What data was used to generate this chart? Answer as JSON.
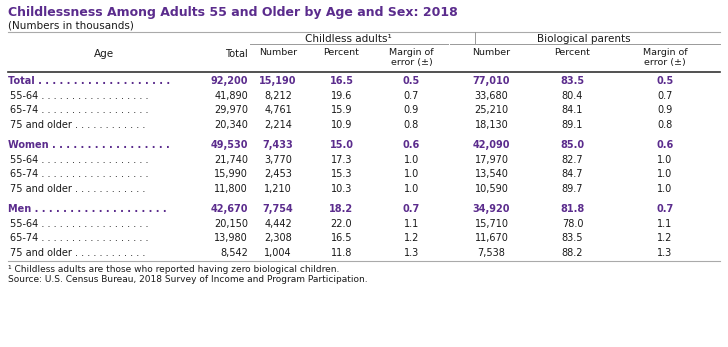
{
  "title": "Childlessness Among Adults 55 and Older by Age and Sex: 2018",
  "subtitle": "(Numbers in thousands)",
  "header1": "Childless adults¹",
  "header2": "Biological parents",
  "footnote1": "¹ Childless adults are those who reported having zero biological children.",
  "footnote2": "Source: U.S. Census Bureau, 2018 Survey of Income and Program Participation.",
  "purple_color": "#5B2C8D",
  "black_color": "#1a1a1a",
  "col_labels": [
    "Total",
    "Number",
    "Percent",
    "Margin of\nerror (±)",
    "Number",
    "Percent",
    "Margin of\nerror (±)"
  ],
  "age_label": "Age",
  "rows": [
    {
      "label": "Total . . . . . . . . . . . . . . . . . . .",
      "bold": true,
      "v": [
        "92,200",
        "15,190",
        "16.5",
        "0.5",
        "77,010",
        "83.5",
        "0.5"
      ]
    },
    {
      "label": "55-64 . . . . . . . . . . . . . . . . . .",
      "bold": false,
      "v": [
        "41,890",
        "8,212",
        "19.6",
        "0.7",
        "33,680",
        "80.4",
        "0.7"
      ]
    },
    {
      "label": "65-74 . . . . . . . . . . . . . . . . . .",
      "bold": false,
      "v": [
        "29,970",
        "4,761",
        "15.9",
        "0.9",
        "25,210",
        "84.1",
        "0.9"
      ]
    },
    {
      "label": "75 and older . . . . . . . . . . . .",
      "bold": false,
      "v": [
        "20,340",
        "2,214",
        "10.9",
        "0.8",
        "18,130",
        "89.1",
        "0.8"
      ]
    },
    {
      "spacer": true
    },
    {
      "label": "Women . . . . . . . . . . . . . . . . .",
      "bold": true,
      "v": [
        "49,530",
        "7,433",
        "15.0",
        "0.6",
        "42,090",
        "85.0",
        "0.6"
      ]
    },
    {
      "label": "55-64 . . . . . . . . . . . . . . . . . .",
      "bold": false,
      "v": [
        "21,740",
        "3,770",
        "17.3",
        "1.0",
        "17,970",
        "82.7",
        "1.0"
      ]
    },
    {
      "label": "65-74 . . . . . . . . . . . . . . . . . .",
      "bold": false,
      "v": [
        "15,990",
        "2,453",
        "15.3",
        "1.0",
        "13,540",
        "84.7",
        "1.0"
      ]
    },
    {
      "label": "75 and older . . . . . . . . . . . .",
      "bold": false,
      "v": [
        "11,800",
        "1,210",
        "10.3",
        "1.0",
        "10,590",
        "89.7",
        "1.0"
      ]
    },
    {
      "spacer": true
    },
    {
      "label": "Men . . . . . . . . . . . . . . . . . . .",
      "bold": true,
      "v": [
        "42,670",
        "7,754",
        "18.2",
        "0.7",
        "34,920",
        "81.8",
        "0.7"
      ]
    },
    {
      "label": "55-64 . . . . . . . . . . . . . . . . . .",
      "bold": false,
      "v": [
        "20,150",
        "4,442",
        "22.0",
        "1.1",
        "15,710",
        "78.0",
        "1.1"
      ]
    },
    {
      "label": "65-74 . . . . . . . . . . . . . . . . . .",
      "bold": false,
      "v": [
        "13,980",
        "2,308",
        "16.5",
        "1.2",
        "11,670",
        "83.5",
        "1.2"
      ]
    },
    {
      "label": "75 and older . . . . . . . . . . . .",
      "bold": false,
      "v": [
        "8,542",
        "1,004",
        "11.8",
        "1.3",
        "7,538",
        "88.2",
        "1.3"
      ]
    }
  ]
}
